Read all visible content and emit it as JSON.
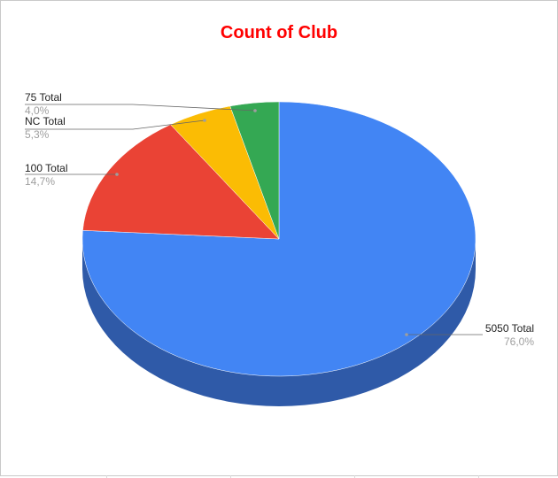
{
  "chart_data": {
    "type": "pie",
    "title": "Count of Club",
    "three_d": true,
    "slices": [
      {
        "name": "5050 Total",
        "value": 76.0,
        "percent_label": "76,0%",
        "color": "#4285f4",
        "side_color": "#2f5aa8"
      },
      {
        "name": "100 Total",
        "value": 14.7,
        "percent_label": "14,7%",
        "color": "#ea4335",
        "side_color": "#a32e24"
      },
      {
        "name": "NC Total",
        "value": 5.3,
        "percent_label": "5,3%",
        "color": "#fbbc04",
        "side_color": "#b08403"
      },
      {
        "name": "75 Total",
        "value": 4.0,
        "percent_label": "4,0%",
        "color": "#34a853",
        "side_color": "#237439"
      }
    ]
  }
}
